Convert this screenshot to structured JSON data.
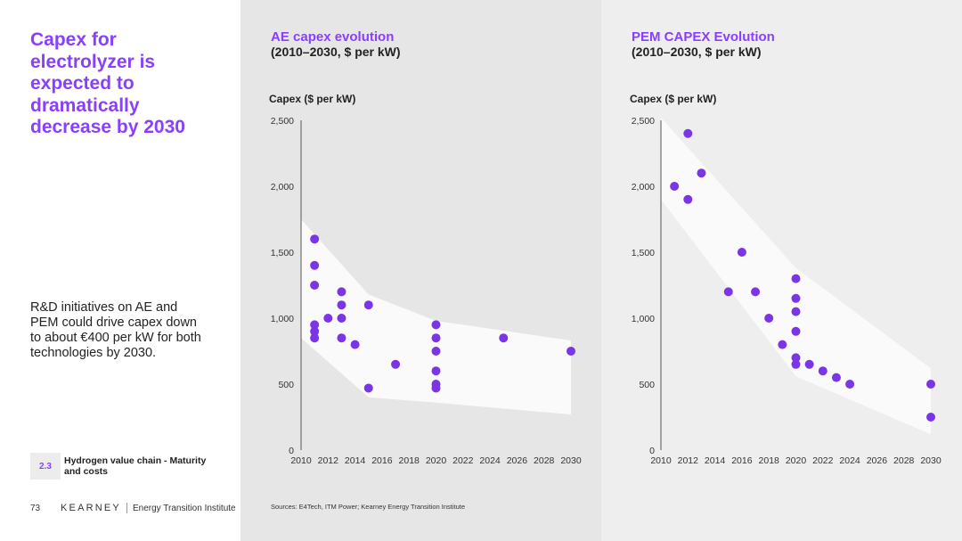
{
  "left": {
    "headline": "Capex for electrolyzer is expected to dramatically decrease by 2030",
    "body": "R&D initiatives on AE and PEM could drive capex down to about €400 per kW for both technologies by 2030.",
    "section_number": "2.3",
    "section_label": "Hydrogen value chain - Maturity and costs",
    "page_number": "73",
    "brand": "KEARNEY",
    "brand_sub": "Energy Transition Institute"
  },
  "sources": "Sources: E4Tech, ITM Power; Kearney Energy Transition Institute",
  "colors": {
    "accent": "#8a3ffc",
    "point": "#7b35e6",
    "band": "#fafafa",
    "mid_bg": "#e6e6e6",
    "right_bg": "#eeeeee"
  },
  "chart_data": [
    {
      "type": "scatter",
      "title": "AE capex evolution",
      "subtitle": "(2010–2030, $ per kW)",
      "ylabel": "Capex ($ per kW)",
      "xlabel": "",
      "xlim": [
        2010,
        2030
      ],
      "ylim": [
        0,
        2500
      ],
      "x_ticks": [
        2010,
        2012,
        2014,
        2016,
        2018,
        2020,
        2022,
        2024,
        2026,
        2028,
        2030
      ],
      "y_ticks": [
        0,
        500,
        1000,
        1500,
        2000,
        2500
      ],
      "y_tick_labels": [
        "0",
        "500",
        "1,000",
        "1,500",
        "2,000",
        "2,500"
      ],
      "grid": false,
      "points": [
        {
          "x": 2011,
          "y": 1600
        },
        {
          "x": 2011,
          "y": 1400
        },
        {
          "x": 2011,
          "y": 1250
        },
        {
          "x": 2011,
          "y": 950
        },
        {
          "x": 2011,
          "y": 900
        },
        {
          "x": 2011,
          "y": 850
        },
        {
          "x": 2012,
          "y": 1000
        },
        {
          "x": 2013,
          "y": 1200
        },
        {
          "x": 2013,
          "y": 1100
        },
        {
          "x": 2013,
          "y": 1000
        },
        {
          "x": 2013,
          "y": 850
        },
        {
          "x": 2014,
          "y": 800
        },
        {
          "x": 2015,
          "y": 1100
        },
        {
          "x": 2015,
          "y": 470
        },
        {
          "x": 2017,
          "y": 650
        },
        {
          "x": 2020,
          "y": 950
        },
        {
          "x": 2020,
          "y": 850
        },
        {
          "x": 2020,
          "y": 750
        },
        {
          "x": 2020,
          "y": 600
        },
        {
          "x": 2020,
          "y": 500
        },
        {
          "x": 2020,
          "y": 470
        },
        {
          "x": 2025,
          "y": 850
        },
        {
          "x": 2030,
          "y": 750
        }
      ],
      "band": [
        {
          "x": 2010,
          "y_low": 850,
          "y_high": 1750
        },
        {
          "x": 2015,
          "y_low": 400,
          "y_high": 1180
        },
        {
          "x": 2020,
          "y_low": 360,
          "y_high": 980
        },
        {
          "x": 2030,
          "y_low": 270,
          "y_high": 830
        }
      ]
    },
    {
      "type": "scatter",
      "title": "PEM CAPEX Evolution",
      "subtitle": "(2010–2030, $ per kW)",
      "ylabel": "Capex ($ per kW)",
      "xlabel": "",
      "xlim": [
        2010,
        2030
      ],
      "ylim": [
        0,
        2500
      ],
      "x_ticks": [
        2010,
        2012,
        2014,
        2016,
        2018,
        2020,
        2022,
        2024,
        2026,
        2028,
        2030
      ],
      "y_ticks": [
        0,
        500,
        1000,
        1500,
        2000,
        2500
      ],
      "y_tick_labels": [
        "0",
        "500",
        "1,000",
        "1,500",
        "2,000",
        "2,500"
      ],
      "grid": false,
      "points": [
        {
          "x": 2011,
          "y": 2000
        },
        {
          "x": 2012,
          "y": 2400
        },
        {
          "x": 2012,
          "y": 1900
        },
        {
          "x": 2013,
          "y": 2100
        },
        {
          "x": 2015,
          "y": 1200
        },
        {
          "x": 2016,
          "y": 1500
        },
        {
          "x": 2017,
          "y": 1200
        },
        {
          "x": 2018,
          "y": 1000
        },
        {
          "x": 2019,
          "y": 800
        },
        {
          "x": 2020,
          "y": 1300
        },
        {
          "x": 2020,
          "y": 1150
        },
        {
          "x": 2020,
          "y": 1050
        },
        {
          "x": 2020,
          "y": 900
        },
        {
          "x": 2020,
          "y": 700
        },
        {
          "x": 2020,
          "y": 650
        },
        {
          "x": 2021,
          "y": 650
        },
        {
          "x": 2022,
          "y": 600
        },
        {
          "x": 2023,
          "y": 550
        },
        {
          "x": 2024,
          "y": 500
        },
        {
          "x": 2030,
          "y": 500
        },
        {
          "x": 2030,
          "y": 250
        }
      ],
      "band": [
        {
          "x": 2010,
          "y_low": 1900,
          "y_high": 2520
        },
        {
          "x": 2020,
          "y_low": 560,
          "y_high": 1380
        },
        {
          "x": 2030,
          "y_low": 120,
          "y_high": 620
        }
      ]
    }
  ]
}
